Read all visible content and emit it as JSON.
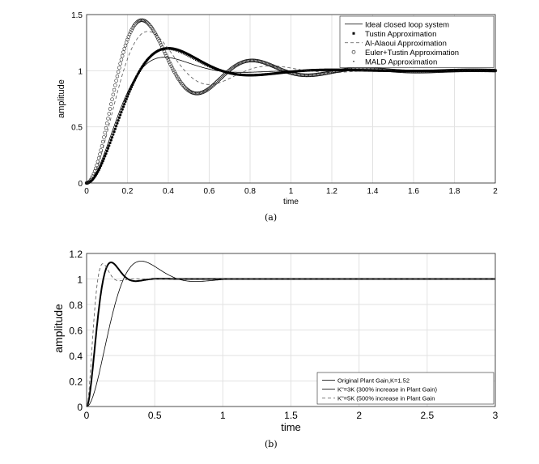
{
  "chart_data": [
    {
      "type": "line",
      "title": "",
      "caption": "(a)",
      "xlabel": "time",
      "ylabel": "amplitude",
      "xlim": [
        0,
        2
      ],
      "ylim": [
        0,
        1.5
      ],
      "xticks": [
        "0",
        "0.2",
        "0.4",
        "0.6",
        "0.8",
        "1",
        "1.2",
        "1.4",
        "1.6",
        "1.8",
        "2"
      ],
      "xtick_values": [
        0,
        0.2,
        0.4,
        0.6,
        0.8,
        1,
        1.2,
        1.4,
        1.6,
        1.8,
        2
      ],
      "yticks": [
        "0",
        "0.5",
        "1",
        "1.5"
      ],
      "ytick_values": [
        0,
        0.5,
        1,
        1.5
      ],
      "grid": true,
      "legend_position": "top-right",
      "series": [
        {
          "name": "Ideal closed loop system",
          "style": "solid",
          "peak_value": 1.12,
          "peak_time": 0.38
        },
        {
          "name": "Tustin Approximation",
          "style": "dot-marker",
          "peak_value": 1.2,
          "peak_time": 0.4
        },
        {
          "name": "Al-Alaoui Approximation",
          "style": "dashed",
          "peak_value": 1.35,
          "peak_time": 0.3
        },
        {
          "name": "Euler+Tustin Approximation",
          "style": "circle-marker",
          "peak_value": 1.45,
          "peak_time": 0.27
        },
        {
          "name": "MALD Approximation",
          "style": "point-marker",
          "peak_value": 1.19,
          "peak_time": 0.39
        }
      ]
    },
    {
      "type": "line",
      "title": "",
      "caption": "(b)",
      "xlabel": "time",
      "ylabel": "amplitude",
      "xlim": [
        0,
        3
      ],
      "ylim": [
        0,
        1.2
      ],
      "xticks": [
        "0",
        "0.5",
        "1",
        "1.5",
        "2",
        "2.5",
        "3"
      ],
      "xtick_values": [
        0,
        0.5,
        1,
        1.5,
        2,
        2.5,
        3
      ],
      "yticks": [
        "0",
        "0.2",
        "0.4",
        "0.6",
        "0.8",
        "1",
        "1.2"
      ],
      "ytick_values": [
        0,
        0.2,
        0.4,
        0.6,
        0.8,
        1,
        1.2
      ],
      "grid": true,
      "legend_position": "bottom-right",
      "series": [
        {
          "name": "Original Plant Gain,K=1.52",
          "style": "solid-thin",
          "peak_value": 1.14,
          "peak_time": 0.4
        },
        {
          "name": "K\"=3K (300% increase in Plant Gain)",
          "style": "solid-thick",
          "peak_value": 1.13,
          "peak_time": 0.18
        },
        {
          "name": "K\"=5K (500% increase in Plant Gain",
          "style": "dashed",
          "peak_value": 1.12,
          "peak_time": 0.12
        }
      ]
    }
  ]
}
